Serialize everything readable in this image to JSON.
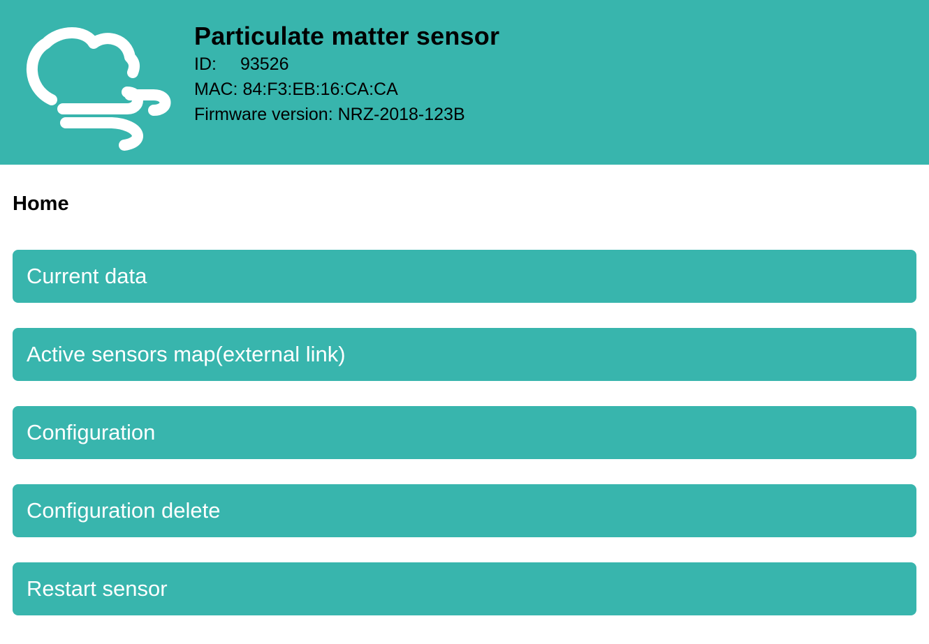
{
  "header": {
    "logo_icon": "cloud-wind-icon",
    "title": "Particulate matter sensor",
    "id_label": "ID:",
    "id_value": "93526",
    "mac_label": "MAC:",
    "mac_value": "84:F3:EB:16:CA:CA",
    "firmware_label": "Firmware version:",
    "firmware_value": "NRZ-2018-123B"
  },
  "page": {
    "heading": "Home"
  },
  "menu": {
    "items": [
      {
        "label": "Current data"
      },
      {
        "label": "Active sensors map(external link)"
      },
      {
        "label": "Configuration"
      },
      {
        "label": "Configuration delete"
      },
      {
        "label": "Restart sensor"
      }
    ]
  },
  "colors": {
    "accent": "#38b5ad",
    "text": "#000000",
    "button_text": "#ffffff"
  }
}
